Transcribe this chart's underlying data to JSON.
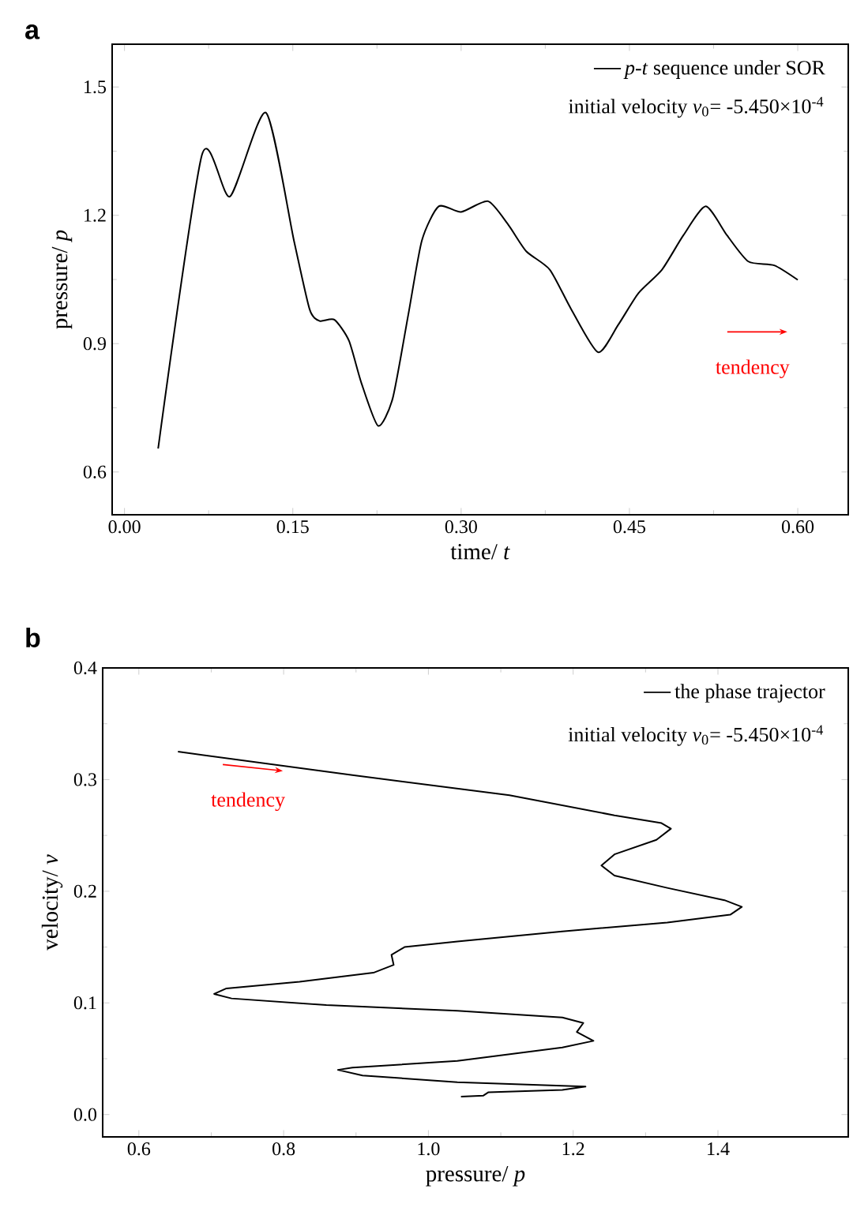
{
  "chart_data": [
    {
      "type": "line",
      "title": "a",
      "xlabel": "time/ *t*",
      "ylabel": "pressure/ *p*",
      "legend": "top right",
      "xlim": [
        -0.011,
        0.645
      ],
      "ylim": [
        0.5,
        1.6
      ],
      "xticks": [
        {
          "value": 0,
          "label": "0.00"
        },
        0.15,
        {
          "value": 0.3,
          "label": "0.30"
        },
        0.45,
        {
          "value": 0.6,
          "label": "0.60"
        }
      ],
      "yticks": [
        0.6,
        0.9,
        1.2,
        1.5
      ],
      "series": [
        {
          "name": "*p*-*t* sequence under SOR",
          "color": "#000000",
          "x": [
            0.03,
            0.069,
            0.094,
            0.126,
            0.151,
            0.165,
            0.174,
            0.187,
            0.2,
            0.211,
            0.226,
            0.239,
            0.253,
            0.265,
            0.28,
            0.3,
            0.324,
            0.342,
            0.358,
            0.379,
            0.398,
            0.422,
            0.44,
            0.458,
            0.479,
            0.498,
            0.518,
            0.537,
            0.556,
            0.579,
            0.6
          ],
          "values": [
            0.655,
            1.341,
            1.244,
            1.44,
            1.141,
            0.98,
            0.953,
            0.956,
            0.907,
            0.809,
            0.708,
            0.772,
            0.969,
            1.141,
            1.221,
            1.208,
            1.233,
            1.178,
            1.116,
            1.073,
            0.981,
            0.88,
            0.944,
            1.018,
            1.073,
            1.153,
            1.221,
            1.153,
            1.092,
            1.083,
            1.049
          ]
        }
      ],
      "annotations": [
        "initial velocity *v*$_{0}$= -5.450×10$^{-4}$",
        "tendency"
      ]
    },
    {
      "type": "line",
      "title": "b",
      "xlabel": "pressure/ *p*",
      "ylabel": "velocity/ *v*",
      "legend": "top right",
      "xlim": [
        0.55,
        1.58
      ],
      "ylim": [
        -0.02,
        0.4
      ],
      "xticks": [
        0.6,
        0.8,
        {
          "value": 1.0,
          "label": "1.0"
        },
        1.2,
        1.4
      ],
      "yticks": [
        {
          "value": 0,
          "label": "0.0"
        },
        0.1,
        0.2,
        0.3,
        0.4
      ],
      "series": [
        {
          "name": "the phase trajector",
          "color": "#000000",
          "x": [
            0.654,
            0.895,
            1.112,
            1.257,
            1.322,
            1.335,
            1.315,
            1.257,
            1.239,
            1.257,
            1.33,
            1.409,
            1.433,
            1.417,
            1.33,
            1.185,
            1.04,
            0.967,
            0.949,
            0.952,
            0.924,
            0.822,
            0.721,
            0.704,
            0.728,
            0.859,
            1.04,
            1.185,
            1.214,
            1.205,
            1.228,
            1.185,
            1.04,
            0.895,
            0.875,
            0.909,
            1.04,
            1.217,
            1.185,
            1.083,
            1.076,
            1.045
          ],
          "values": [
            0.325,
            0.304,
            0.286,
            0.268,
            0.261,
            0.256,
            0.246,
            0.233,
            0.223,
            0.214,
            0.203,
            0.192,
            0.186,
            0.179,
            0.172,
            0.164,
            0.155,
            0.15,
            0.143,
            0.134,
            0.127,
            0.119,
            0.113,
            0.108,
            0.104,
            0.098,
            0.093,
            0.087,
            0.082,
            0.074,
            0.066,
            0.06,
            0.048,
            0.042,
            0.04,
            0.035,
            0.029,
            0.025,
            0.022,
            0.02,
            0.017,
            0.016
          ]
        }
      ],
      "annotations": [
        "initial velocity *v*$_{0}$= -5.450×10$^{-4}$",
        "tendency"
      ]
    }
  ]
}
